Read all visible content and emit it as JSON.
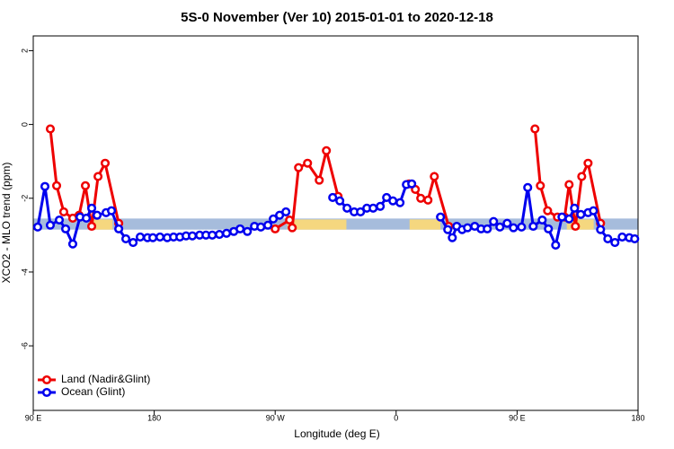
{
  "chart_data": {
    "type": "line",
    "title": "5S-0 November (Ver 10)   2015-01-01 to 2020-12-18",
    "x_label": "Longitude (deg E)",
    "y_label": "XCO2 - MLO trend (ppm)",
    "xlim": [
      90,
      540
    ],
    "ylim": [
      -7.75,
      2.4
    ],
    "xticks": [
      {
        "value": 90,
        "label": "90 E"
      },
      180,
      {
        "value": 270,
        "label": "90 W"
      },
      {
        "value": 360,
        "label": "0"
      },
      {
        "value": 450,
        "label": "90 E"
      },
      {
        "value": 540,
        "label": "180"
      }
    ],
    "yticks": [
      2,
      0,
      -2,
      -4,
      -6
    ],
    "band": {
      "ylim": [
        -2.85,
        -2.55
      ],
      "color": "#a6bcdc"
    },
    "land_spans": {
      "color": "#f5d77f",
      "ranges": [
        [
          132,
          149
        ],
        [
          279,
          323
        ],
        [
          370,
          393
        ],
        [
          487,
          507
        ]
      ]
    },
    "legend": "bottom-left",
    "series": [
      {
        "name": "Land (Nadir&Glint)",
        "color": "#ee0000",
        "x": [
          102.7,
          107.4,
          112.7,
          119.4,
          124.1,
          128.8,
          133.5,
          138.2,
          143.5,
          153.6,
          210,
          270,
          280.7,
          282.7,
          287.4,
          294.1,
          302.8,
          308.1,
          316.8,
          343,
          369.6,
          374.3,
          378.3,
          383.7,
          388.4,
          399.1,
          430,
          463.3,
          467.3,
          472.7,
          480,
          485.4,
          488.7,
          493.4,
          498.1,
          502.8,
          512.1
        ],
        "values": [
          -0.12,
          -1.66,
          -2.37,
          -2.54,
          -2.46,
          -1.66,
          -2.76,
          -1.41,
          -1.05,
          -2.68,
          null,
          -2.83,
          -2.59,
          -2.8,
          -1.17,
          -1.05,
          -1.51,
          -0.71,
          -1.95,
          null,
          -1.61,
          -1.76,
          -2.0,
          -2.05,
          -1.41,
          -2.76,
          null,
          -0.12,
          -1.66,
          -2.34,
          -2.51,
          -2.51,
          -1.63,
          -2.76,
          -1.41,
          -1.05,
          -2.68
        ]
      },
      {
        "name": "Ocean (Glint)",
        "color": "#0000ee",
        "x": [
          93.3,
          98.7,
          102.7,
          109.4,
          114.1,
          119.4,
          124.8,
          129.5,
          133.5,
          137.5,
          144.2,
          148.2,
          153.6,
          158.9,
          164.3,
          169.6,
          175,
          179,
          184.3,
          189.7,
          194.4,
          199.1,
          203.7,
          208.4,
          213.8,
          218.5,
          223.2,
          228.5,
          233.8,
          239.2,
          243.9,
          249.3,
          254.6,
          259.3,
          264.6,
          268.6,
          273.3,
          278,
          295,
          312.8,
          318.1,
          323.5,
          328.8,
          333.5,
          338.2,
          342.9,
          348.2,
          352.9,
          357.6,
          362.9,
          367.6,
          371.6,
          382,
          393,
          398.4,
          401.8,
          405.1,
          409.1,
          413.1,
          418.5,
          423.2,
          427.8,
          432.5,
          437.2,
          442.6,
          447.3,
          453.3,
          457.9,
          462,
          468.7,
          473.3,
          478.7,
          483.4,
          488.7,
          492.7,
          497.4,
          502.8,
          506.8,
          512.1,
          517.5,
          522.8,
          528.2,
          533.5,
          537.5
        ],
        "values": [
          -2.78,
          -1.68,
          -2.73,
          -2.59,
          -2.83,
          -3.24,
          -2.51,
          -2.54,
          -2.27,
          -2.46,
          -2.39,
          -2.34,
          -2.83,
          -3.1,
          -3.2,
          -3.05,
          -3.07,
          -3.07,
          -3.05,
          -3.07,
          -3.05,
          -3.05,
          -3.02,
          -3.02,
          -3.0,
          -3.0,
          -3.0,
          -2.98,
          -2.95,
          -2.9,
          -2.83,
          -2.9,
          -2.76,
          -2.78,
          -2.73,
          -2.56,
          -2.46,
          -2.37,
          null,
          -1.98,
          -2.07,
          -2.27,
          -2.37,
          -2.37,
          -2.27,
          -2.27,
          -2.22,
          -1.98,
          -2.07,
          -2.12,
          -1.63,
          -1.61,
          null,
          -2.51,
          -2.85,
          -3.07,
          -2.76,
          -2.85,
          -2.8,
          -2.76,
          -2.83,
          -2.83,
          -2.63,
          -2.78,
          -2.68,
          -2.8,
          -2.78,
          -1.71,
          -2.76,
          -2.59,
          -2.83,
          -3.27,
          -2.51,
          -2.56,
          -2.27,
          -2.44,
          -2.39,
          -2.34,
          -2.85,
          -3.1,
          -3.2,
          -3.05,
          -3.07,
          -3.1
        ]
      }
    ]
  }
}
